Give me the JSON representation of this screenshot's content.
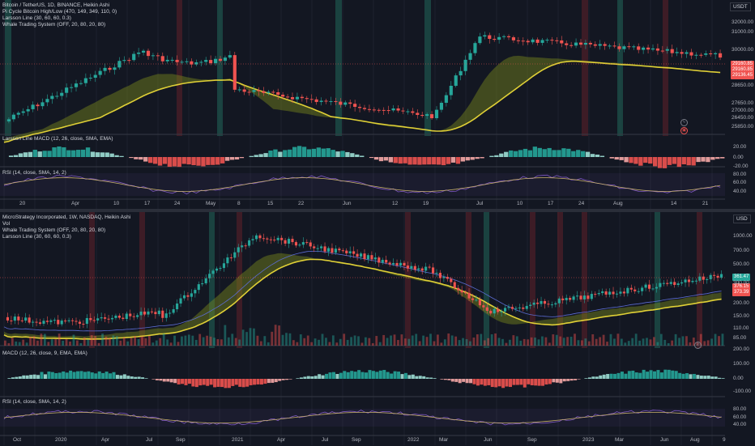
{
  "colors": {
    "bg": "#131722",
    "up": "#26a69a",
    "down": "#ef5350",
    "grid": "#2a2e39",
    "yellow": "#ffeb3b",
    "olive": "#7b8a1c",
    "blue": "#5b6bd1",
    "highlight_green": "#1f5f55",
    "highlight_red": "#5a1f2a"
  },
  "top_chart": {
    "legend": [
      "Bitcoin / TetherUS, 1D, BINANCE, Heikin Ashi",
      "Pi Cycle Bitcoin High/Low (470, 149, 349, 110, 0)",
      "Larsson Line (30, 60, 60, 0.3)",
      "Whale Trading System (OFF, 20, 80, 20, 80)"
    ],
    "currency": "USDT",
    "price_ticks": [
      "32000.00",
      "31000.00",
      "30000.00",
      "29160.85",
      "28650.00",
      "27650.00",
      "27000.00",
      "26450.00",
      "25850.00"
    ],
    "price_tags": [
      {
        "text": "29160.85",
        "color": "#ef5350"
      },
      {
        "text": "29136.45",
        "color": "#ef5350"
      }
    ],
    "osc_label": "Larsson Line MACD (12, 26, close, SMA, EMA)",
    "osc_ticks": [
      "20.00",
      "0.00",
      "-20.00"
    ],
    "rsi_label": "RSI (14, close, SMA, 14, 2)",
    "rsi_ticks": [
      "80.00",
      "60.00",
      "40.00"
    ],
    "time_ticks": [
      "20",
      "Apr",
      "10",
      "17",
      "24",
      "May",
      "8",
      "15",
      "22",
      "Jun",
      "12",
      "19",
      "Jul",
      "10",
      "17",
      "24",
      "Aug",
      "14",
      "21"
    ]
  },
  "bottom_chart": {
    "legend": [
      "MicroStrategy Incorporated, 1W, NASDAQ, Heikin Ashi",
      "Vol",
      "Whale Trading System (OFF, 20, 80, 20, 80)",
      "Larsson Line (30, 60, 60, 0.3)"
    ],
    "currency": "USD",
    "price_ticks": [
      "1000.00",
      "700.00",
      "500.00",
      "300.00",
      "200.00",
      "150.00",
      "110.00",
      "85.00"
    ],
    "price_tags": [
      {
        "text": "361.47",
        "color": "#26a69a"
      },
      {
        "text": "376.15",
        "color": "#ef5350"
      },
      {
        "text": "373.39",
        "color": "#ef5350"
      }
    ],
    "macd_label": "MACD (12, 26, close, 9, EMA, EMA)",
    "macd_ticks": [
      "200.00",
      "100.00",
      "0.00",
      "-100.00"
    ],
    "rsi_label": "RSI (14, close, SMA, 14, 2)",
    "rsi_ticks": [
      "80.00",
      "60.00",
      "40.00"
    ],
    "time_ticks": [
      "Oct",
      "2020",
      "Apr",
      "Jul",
      "Sep",
      "2021",
      "Apr",
      "Jul",
      "Sep",
      "2022",
      "Mar",
      "Jun",
      "Sep",
      "2023",
      "Mar",
      "Jun",
      "Aug",
      "9"
    ]
  }
}
